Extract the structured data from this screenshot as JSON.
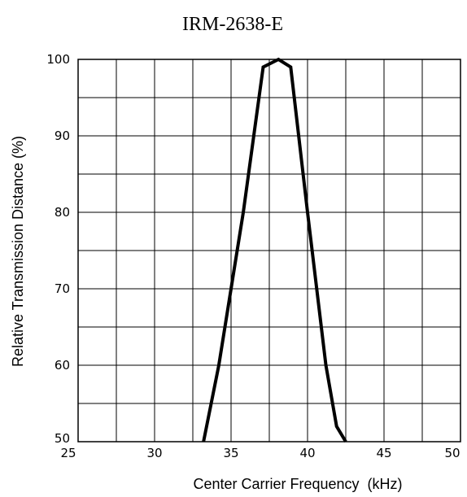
{
  "chart_data": {
    "type": "line",
    "title": "IRM-2638-E",
    "xlabel": "Center Carrier Frequency  (kHz)",
    "ylabel": "Relative Transmission Distance (%)",
    "xlim": [
      25,
      50
    ],
    "ylim": [
      50,
      100
    ],
    "xticks": [
      25,
      30,
      35,
      40,
      45,
      50
    ],
    "yticks": [
      50,
      60,
      70,
      80,
      90,
      100
    ],
    "x_gridlines": [
      25,
      27.5,
      30,
      32.5,
      35,
      37.5,
      40,
      42.5,
      45,
      47.5,
      50
    ],
    "y_gridlines": [
      50,
      55,
      60,
      65,
      70,
      75,
      80,
      85,
      90,
      95,
      100
    ],
    "grid": true,
    "series": [
      {
        "x": [
          33.2,
          34.2,
          35.0,
          35.8,
          37.1,
          38.1,
          38.9,
          40.0,
          41.2,
          41.9,
          42.5
        ],
        "y": [
          50,
          60,
          70,
          80,
          99,
          100,
          99,
          80,
          60,
          52,
          50
        ]
      }
    ]
  }
}
